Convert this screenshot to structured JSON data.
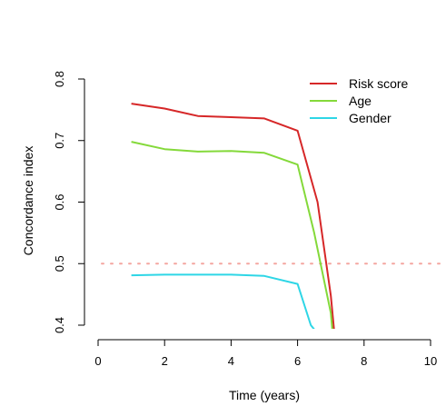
{
  "chart_data": {
    "type": "line",
    "title": "",
    "xlabel": "Time (years)",
    "ylabel": "Concordance index",
    "xlim": [
      0,
      10
    ],
    "ylim": [
      0.4,
      0.8
    ],
    "xticks": [
      0,
      2,
      4,
      6,
      8,
      10
    ],
    "yticks": [
      0.4,
      0.5,
      0.6,
      0.7,
      0.8
    ],
    "x_tick_labels": [
      "0",
      "2",
      "4",
      "6",
      "8",
      "10"
    ],
    "y_tick_labels": [
      "0.4",
      "0.5",
      "0.6",
      "0.7",
      "0.8"
    ],
    "grid": false,
    "legend_position": "top-right",
    "reference_line": {
      "y": 0.5,
      "color": "#f4a6a0",
      "style": "dotted"
    },
    "series": [
      {
        "name": "Risk score",
        "color": "#d62728",
        "x": [
          1,
          2,
          3,
          4,
          5,
          6,
          6.6,
          7.0,
          7.1
        ],
        "y": [
          0.76,
          0.752,
          0.74,
          0.738,
          0.736,
          0.716,
          0.6,
          0.448,
          0.39
        ]
      },
      {
        "name": "Age",
        "color": "#84d93a",
        "x": [
          1,
          2,
          3,
          4,
          5,
          6,
          6.5,
          7.0,
          7.05
        ],
        "y": [
          0.698,
          0.686,
          0.682,
          0.683,
          0.68,
          0.661,
          0.55,
          0.42,
          0.39
        ]
      },
      {
        "name": "Gender",
        "color": "#2ed6e6",
        "x": [
          1,
          2,
          3,
          4,
          5,
          6,
          6.4,
          6.55
        ],
        "y": [
          0.481,
          0.482,
          0.482,
          0.482,
          0.48,
          0.467,
          0.4,
          0.39
        ]
      }
    ]
  }
}
